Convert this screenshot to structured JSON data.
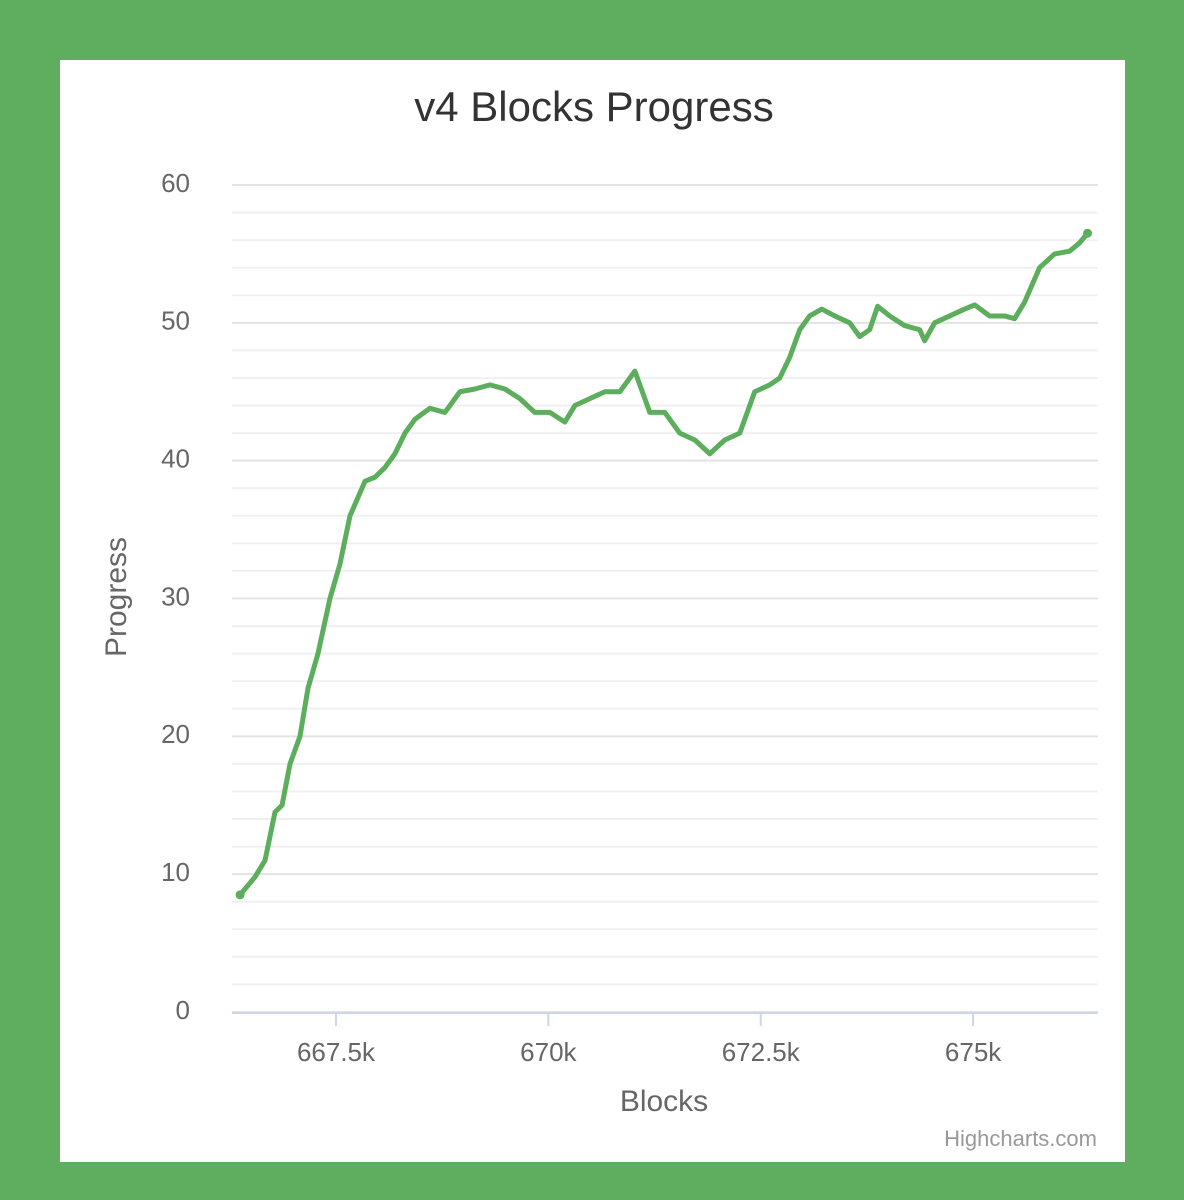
{
  "chart_data": {
    "type": "line",
    "title": "v4 Blocks Progress",
    "x_label": "Blocks",
    "y_label": "Progress",
    "credits": "Highcharts.com",
    "color": "#5cad5c",
    "grid": true,
    "x": [
      666371,
      666547,
      666665,
      666782,
      666865,
      666959,
      667076,
      667171,
      667288,
      667429,
      667547,
      667665,
      667841,
      667959,
      668076,
      668194,
      668312,
      668429,
      668606,
      668782,
      668959,
      669135,
      669312,
      669488,
      669665,
      669841,
      670018,
      670194,
      670312,
      670488,
      670665,
      670841,
      671018,
      671194,
      671371,
      671547,
      671724,
      671900,
      672076,
      672253,
      672429,
      672606,
      672724,
      672841,
      672959,
      673076,
      673218,
      673371,
      673547,
      673665,
      673782,
      673876,
      674018,
      674194,
      674371,
      674429,
      674547,
      674724,
      674900,
      675018,
      675194,
      675371,
      675488,
      675606,
      675782,
      675959,
      676135,
      676253,
      676347
    ],
    "values": [
      8.5,
      9.8,
      11,
      14.5,
      15,
      18,
      20,
      23.5,
      26,
      30,
      32.5,
      36,
      38.5,
      38.8,
      39.5,
      40.5,
      42,
      43,
      43.8,
      43.5,
      45,
      45.2,
      45.5,
      45.2,
      44.5,
      43.5,
      43.5,
      42.8,
      44,
      44.5,
      45,
      45,
      46.5,
      43.5,
      43.5,
      42,
      41.5,
      40.5,
      41.5,
      42,
      45,
      45.5,
      46,
      47.5,
      49.5,
      50.5,
      51,
      50.5,
      50,
      49,
      49.5,
      51.2,
      50.5,
      49.8,
      49.5,
      48.7,
      50,
      50.5,
      51,
      51.3,
      50.5,
      50.5,
      50.3,
      51.5,
      54,
      55,
      55.2,
      55.8,
      56.5
    ],
    "xlim": [
      666276,
      676470
    ],
    "xticks": [
      {
        "value": 667500,
        "label": "667.5k"
      },
      {
        "value": 670000,
        "label": "670k"
      },
      {
        "value": 672500,
        "label": "672.5k"
      },
      {
        "value": 675000,
        "label": "675k"
      }
    ],
    "ylim": [
      0,
      60
    ],
    "yticks": [
      0,
      10,
      20,
      30,
      40,
      50,
      60
    ],
    "y_minor_ticks": [
      2,
      4,
      6,
      8,
      12,
      14,
      16,
      18,
      22,
      24,
      26,
      28,
      32,
      34,
      36,
      38,
      42,
      44,
      46,
      48,
      52,
      54,
      56,
      58
    ]
  }
}
